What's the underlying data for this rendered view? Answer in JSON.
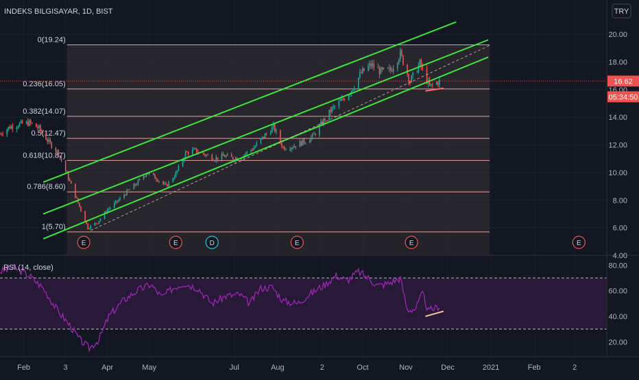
{
  "symbol_title": "INDEKS BILGISAYAR, 1D, BIST",
  "currency_button": "TRY",
  "price_badge": "16.62",
  "countdown_badge": "05:34:50",
  "rsi_title": "RSI (14, close)",
  "colors": {
    "background": "#131722",
    "channel": "#3ce63c",
    "fib_line": "#e8a0a0",
    "fib_zone": "#3a3336",
    "candle_up": "#26a69a",
    "candle_down": "#ef5350",
    "rsi_line": "#9c27b0",
    "rsi_band": "#2a1a3a",
    "badge_red": "#ef5350"
  },
  "events": [
    {
      "label": "E",
      "date": "2020-03-15"
    },
    {
      "label": "E",
      "date": "2020-05-20"
    },
    {
      "label": "D",
      "date": "2020-06-15"
    },
    {
      "label": "E",
      "date": "2020-08-15"
    },
    {
      "label": "E",
      "date": "2020-11-05"
    },
    {
      "label": "E",
      "date": "2021-03-05"
    }
  ],
  "chart_data": [
    {
      "type": "candlestick",
      "title": "INDEKS BILGISAYAR, 1D, BIST",
      "x_range": [
        "2020-01-15",
        "2021-03-25"
      ],
      "ylim": [
        4,
        21
      ],
      "y_ticks": [
        "20.00",
        "18.00",
        "16.00",
        "14.00",
        "12.00",
        "10.00",
        "8.00",
        "6.00",
        "4.00"
      ],
      "x_ticks": [
        {
          "label": "Feb",
          "date": "2020-02-01"
        },
        {
          "label": "3",
          "date": "2020-03-02"
        },
        {
          "label": "Apr",
          "date": "2020-04-01"
        },
        {
          "label": "May",
          "date": "2020-05-01"
        },
        {
          "label": "Jul",
          "date": "2020-07-01"
        },
        {
          "label": "Aug",
          "date": "2020-08-01"
        },
        {
          "label": "2",
          "date": "2020-09-02"
        },
        {
          "label": "Oct",
          "date": "2020-10-01"
        },
        {
          "label": "Nov",
          "date": "2020-11-01"
        },
        {
          "label": "Dec",
          "date": "2020-12-01"
        },
        {
          "label": "2021",
          "date": "2021-01-01"
        },
        {
          "label": "Feb",
          "date": "2021-02-01"
        },
        {
          "label": "2",
          "date": "2021-03-02"
        }
      ],
      "fibonacci": {
        "start_date": "2020-03-03",
        "end_date": "2020-12-31",
        "levels": [
          {
            "label": "0(19.24)",
            "value": 19.24
          },
          {
            "label": "0.236(16.05)",
            "value": 16.05
          },
          {
            "label": "0.382(14.07)",
            "value": 14.07
          },
          {
            "label": "0.5(12.47)",
            "value": 12.47
          },
          {
            "label": "0.618(10.87)",
            "value": 10.87
          },
          {
            "label": "0.786(8.60)",
            "value": 8.6
          },
          {
            "label": "1(5.70)",
            "value": 5.7
          }
        ]
      },
      "channel_lines": [
        {
          "from": {
            "date": "2020-02-15",
            "value": 9.3
          },
          "to": {
            "date": "2020-12-07",
            "value": 20.9
          }
        },
        {
          "from": {
            "date": "2020-02-15",
            "value": 7.0
          },
          "to": {
            "date": "2020-12-30",
            "value": 19.6
          }
        },
        {
          "from": {
            "date": "2020-02-15",
            "value": 5.2
          },
          "to": {
            "date": "2020-12-30",
            "value": 18.35
          }
        }
      ],
      "midline": {
        "from": {
          "date": "2020-03-20",
          "value": 5.8
        },
        "to": {
          "date": "2020-12-31",
          "value": 19.2
        }
      },
      "support_mark": {
        "from": {
          "date": "2020-11-15",
          "value": 15.9
        },
        "to": {
          "date": "2020-11-28",
          "value": 16.1
        }
      },
      "last_price": 16.62,
      "closes": [
        {
          "date": "2020-01-15",
          "value": 12.8
        },
        {
          "date": "2020-01-22",
          "value": 13.3
        },
        {
          "date": "2020-01-29",
          "value": 13.5
        },
        {
          "date": "2020-02-05",
          "value": 13.6
        },
        {
          "date": "2020-02-12",
          "value": 13.2
        },
        {
          "date": "2020-02-19",
          "value": 12.2
        },
        {
          "date": "2020-02-26",
          "value": 11.4
        },
        {
          "date": "2020-03-04",
          "value": 9.6
        },
        {
          "date": "2020-03-11",
          "value": 7.8
        },
        {
          "date": "2020-03-18",
          "value": 6.0
        },
        {
          "date": "2020-03-25",
          "value": 6.4
        },
        {
          "date": "2020-04-01",
          "value": 7.3
        },
        {
          "date": "2020-04-08",
          "value": 7.9
        },
        {
          "date": "2020-04-15",
          "value": 8.6
        },
        {
          "date": "2020-04-22",
          "value": 9.2
        },
        {
          "date": "2020-04-29",
          "value": 10.0
        },
        {
          "date": "2020-05-06",
          "value": 9.6
        },
        {
          "date": "2020-05-13",
          "value": 9.0
        },
        {
          "date": "2020-05-20",
          "value": 9.9
        },
        {
          "date": "2020-05-27",
          "value": 11.4
        },
        {
          "date": "2020-06-03",
          "value": 11.6
        },
        {
          "date": "2020-06-10",
          "value": 11.3
        },
        {
          "date": "2020-06-17",
          "value": 11.0
        },
        {
          "date": "2020-06-24",
          "value": 11.2
        },
        {
          "date": "2020-07-01",
          "value": 11.0
        },
        {
          "date": "2020-07-08",
          "value": 11.3
        },
        {
          "date": "2020-07-15",
          "value": 11.8
        },
        {
          "date": "2020-07-22",
          "value": 12.6
        },
        {
          "date": "2020-07-29",
          "value": 13.3
        },
        {
          "date": "2020-08-05",
          "value": 11.8
        },
        {
          "date": "2020-08-12",
          "value": 11.9
        },
        {
          "date": "2020-08-19",
          "value": 12.2
        },
        {
          "date": "2020-08-26",
          "value": 12.6
        },
        {
          "date": "2020-09-02",
          "value": 13.6
        },
        {
          "date": "2020-09-09",
          "value": 14.6
        },
        {
          "date": "2020-09-16",
          "value": 15.2
        },
        {
          "date": "2020-09-23",
          "value": 16.0
        },
        {
          "date": "2020-09-30",
          "value": 17.2
        },
        {
          "date": "2020-10-07",
          "value": 17.8
        },
        {
          "date": "2020-10-14",
          "value": 17.3
        },
        {
          "date": "2020-10-21",
          "value": 17.4
        },
        {
          "date": "2020-10-28",
          "value": 18.6
        },
        {
          "date": "2020-11-04",
          "value": 16.6
        },
        {
          "date": "2020-11-11",
          "value": 17.9
        },
        {
          "date": "2020-11-18",
          "value": 16.2
        },
        {
          "date": "2020-11-25",
          "value": 16.62
        }
      ]
    },
    {
      "type": "line",
      "title": "RSI (14, close)",
      "ylim": [
        10,
        85
      ],
      "y_ticks": [
        "80.00",
        "60.00",
        "40.00",
        "20.00"
      ],
      "band": [
        30,
        70
      ],
      "series": [
        {
          "name": "",
          "points": [
            {
              "date": "2020-01-15",
              "value": 75
            },
            {
              "date": "2020-01-25",
              "value": 78
            },
            {
              "date": "2020-02-05",
              "value": 72
            },
            {
              "date": "2020-02-15",
              "value": 62
            },
            {
              "date": "2020-02-25",
              "value": 45
            },
            {
              "date": "2020-03-05",
              "value": 33
            },
            {
              "date": "2020-03-12",
              "value": 22
            },
            {
              "date": "2020-03-19",
              "value": 15
            },
            {
              "date": "2020-03-26",
              "value": 22
            },
            {
              "date": "2020-04-02",
              "value": 40
            },
            {
              "date": "2020-04-12",
              "value": 52
            },
            {
              "date": "2020-04-22",
              "value": 60
            },
            {
              "date": "2020-05-02",
              "value": 65
            },
            {
              "date": "2020-05-10",
              "value": 55
            },
            {
              "date": "2020-05-18",
              "value": 62
            },
            {
              "date": "2020-05-26",
              "value": 66
            },
            {
              "date": "2020-06-05",
              "value": 62
            },
            {
              "date": "2020-06-15",
              "value": 50
            },
            {
              "date": "2020-06-25",
              "value": 56
            },
            {
              "date": "2020-07-05",
              "value": 57
            },
            {
              "date": "2020-07-12",
              "value": 50
            },
            {
              "date": "2020-07-20",
              "value": 62
            },
            {
              "date": "2020-07-28",
              "value": 63
            },
            {
              "date": "2020-08-05",
              "value": 52
            },
            {
              "date": "2020-08-15",
              "value": 50
            },
            {
              "date": "2020-08-25",
              "value": 58
            },
            {
              "date": "2020-09-04",
              "value": 65
            },
            {
              "date": "2020-09-12",
              "value": 72
            },
            {
              "date": "2020-09-20",
              "value": 68
            },
            {
              "date": "2020-09-28",
              "value": 75
            },
            {
              "date": "2020-10-05",
              "value": 70
            },
            {
              "date": "2020-10-12",
              "value": 64
            },
            {
              "date": "2020-10-20",
              "value": 66
            },
            {
              "date": "2020-10-28",
              "value": 70
            },
            {
              "date": "2020-11-02",
              "value": 45
            },
            {
              "date": "2020-11-08",
              "value": 46
            },
            {
              "date": "2020-11-13",
              "value": 58
            },
            {
              "date": "2020-11-17",
              "value": 44
            },
            {
              "date": "2020-11-21",
              "value": 46
            },
            {
              "date": "2020-11-25",
              "value": 48
            }
          ]
        }
      ],
      "divergence_line": {
        "from": {
          "date": "2020-11-15",
          "value": 40
        },
        "to": {
          "date": "2020-11-28",
          "value": 44
        }
      }
    }
  ]
}
